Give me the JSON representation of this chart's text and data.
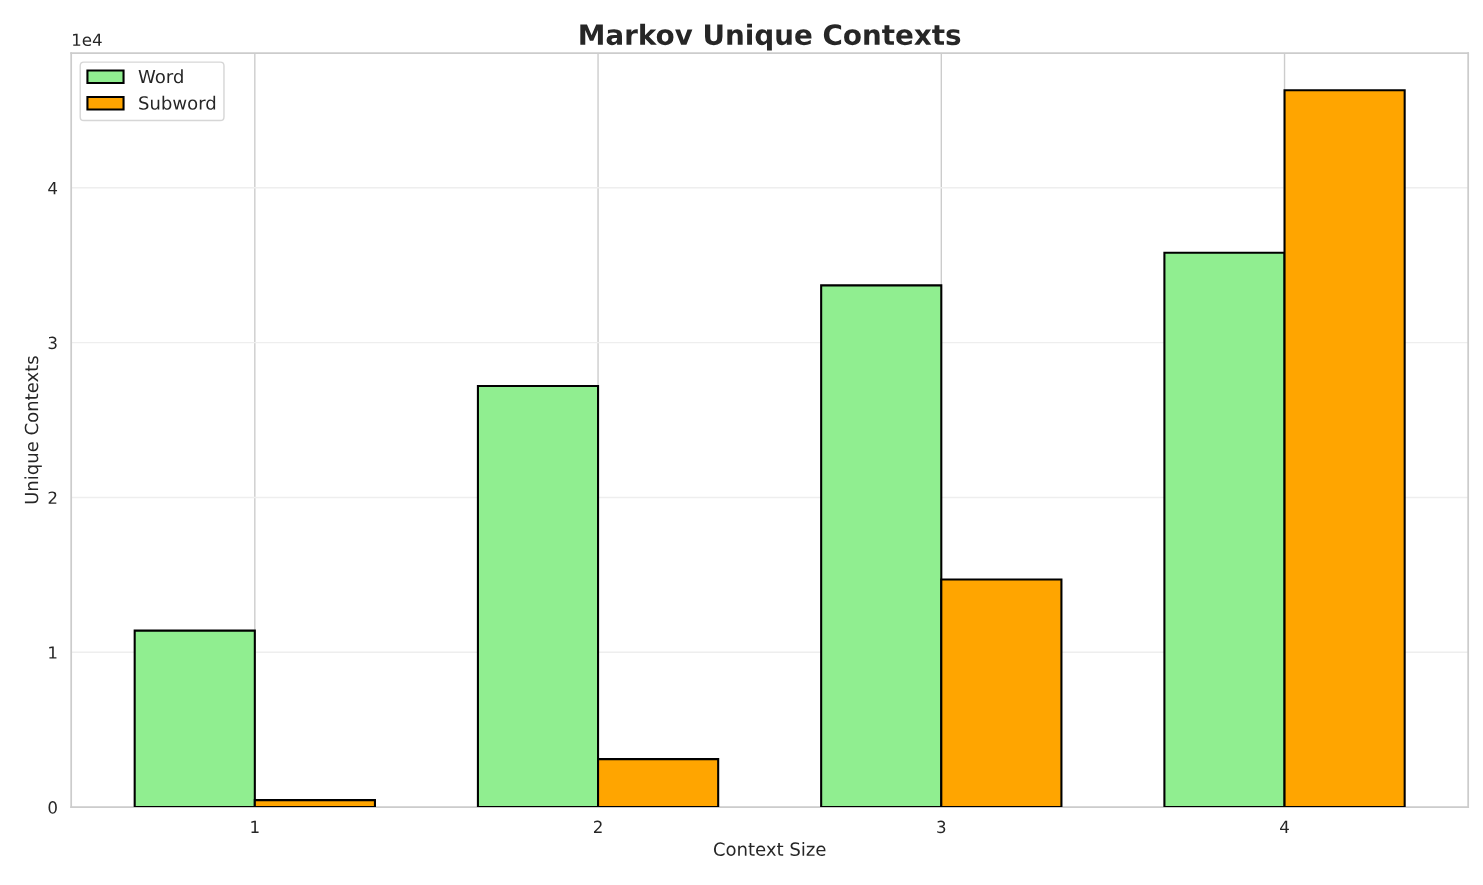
{
  "chart_data": {
    "type": "bar",
    "title": "Markov Unique Contexts",
    "xlabel": "Context Size",
    "ylabel": "Unique Contexts",
    "categories": [
      "1",
      "2",
      "3",
      "4"
    ],
    "series": [
      {
        "name": "Word",
        "color": "#90ee90",
        "values": [
          1.14,
          2.72,
          3.37,
          3.58
        ]
      },
      {
        "name": "Subword",
        "color": "#ffa500",
        "values": [
          0.045,
          0.31,
          1.47,
          4.63
        ]
      }
    ],
    "ylim": [
      0,
      4.87
    ],
    "yticks": [
      0,
      1,
      2,
      3,
      4
    ],
    "annotations": [
      "1e4"
    ],
    "grid": true,
    "legend": "top left"
  }
}
